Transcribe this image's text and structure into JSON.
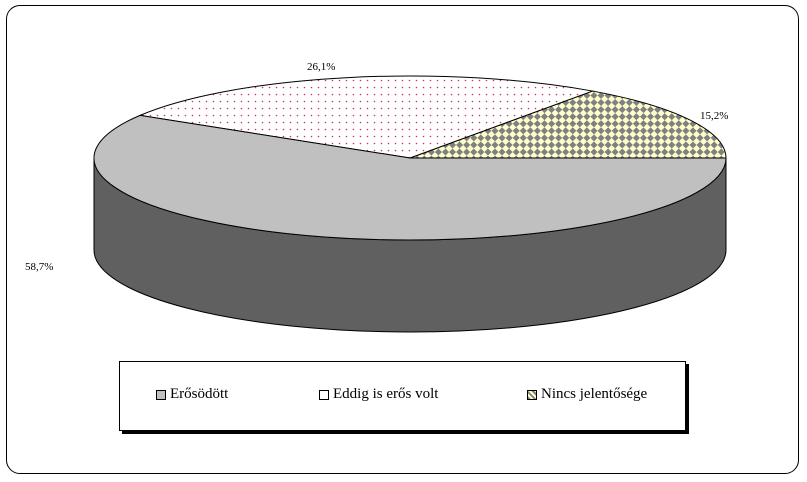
{
  "chart_data": {
    "type": "pie",
    "style": "3d",
    "series": [
      {
        "name": "Erősödött",
        "value": 58.7,
        "label": "58,7%",
        "color": "#c0c0c0",
        "side_color": "#606060"
      },
      {
        "name": "Eddig is erős volt",
        "value": 26.1,
        "label": "26,1%",
        "color": "#ffffff",
        "dot_color": "#cc3366"
      },
      {
        "name": "Nincs jelentősége",
        "value": 15.2,
        "label": "15,2%",
        "color": "#ffffcc",
        "pattern_color": "#808080"
      }
    ],
    "legend_position": "bottom"
  }
}
